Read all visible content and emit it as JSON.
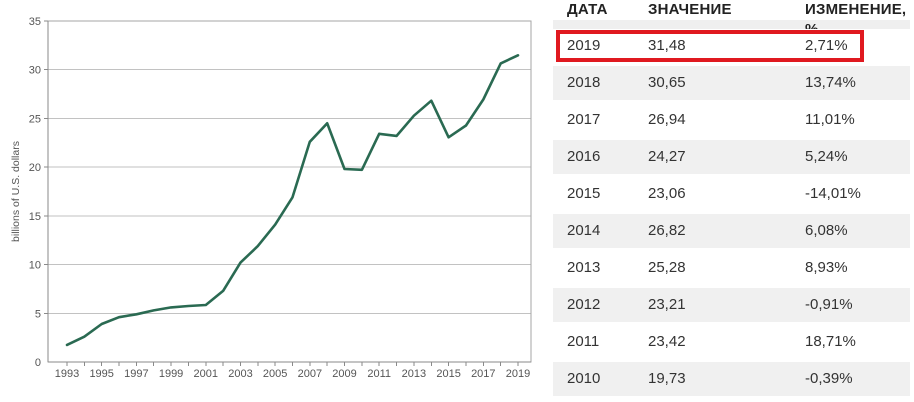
{
  "chart_data": {
    "type": "line",
    "title": "",
    "xlabel": "",
    "ylabel": "billions of U.S. dollars",
    "x": [
      1993,
      1994,
      1995,
      1996,
      1997,
      1998,
      1999,
      2000,
      2001,
      2002,
      2003,
      2004,
      2005,
      2006,
      2007,
      2008,
      2009,
      2010,
      2011,
      2012,
      2013,
      2014,
      2015,
      2016,
      2017,
      2018,
      2019
    ],
    "values": [
      1.75,
      2.6,
      3.9,
      4.6,
      4.9,
      5.3,
      5.6,
      5.75,
      5.85,
      7.3,
      10.2,
      11.9,
      14.1,
      16.9,
      22.6,
      24.5,
      19.81,
      19.73,
      23.42,
      23.21,
      25.28,
      26.82,
      23.06,
      24.27,
      26.94,
      30.65,
      31.48
    ],
    "ylim": [
      0,
      35
    ],
    "ytick_step": 5,
    "yticks": [
      0,
      5,
      10,
      15,
      20,
      25,
      30,
      35
    ],
    "xtick_label_years": [
      1993,
      1995,
      1997,
      1999,
      2001,
      2003,
      2005,
      2007,
      2009,
      2011,
      2013,
      2015,
      2017,
      2019
    ],
    "grid": "horizontal",
    "legend": "none",
    "line_color": "#2a6a52",
    "grid_color": "#c2c2c2",
    "axis_color": "#8a8a8a",
    "tick_text_color": "#555555"
  },
  "table": {
    "columns": [
      "ДАТА",
      "ЗНАЧЕНИЕ",
      "ИЗМЕНЕНИЕ, %"
    ],
    "highlight_color": "#e01920",
    "stripe_color": "#f0f0f0",
    "rows": [
      {
        "date": "2019",
        "value": "31,48",
        "change": "2,71%",
        "highlighted": true
      },
      {
        "date": "2018",
        "value": "30,65",
        "change": "13,74%",
        "highlighted": false
      },
      {
        "date": "2017",
        "value": "26,94",
        "change": "11,01%",
        "highlighted": false
      },
      {
        "date": "2016",
        "value": "24,27",
        "change": "5,24%",
        "highlighted": false
      },
      {
        "date": "2015",
        "value": "23,06",
        "change": "-14,01%",
        "highlighted": false
      },
      {
        "date": "2014",
        "value": "26,82",
        "change": "6,08%",
        "highlighted": false
      },
      {
        "date": "2013",
        "value": "25,28",
        "change": "8,93%",
        "highlighted": false
      },
      {
        "date": "2012",
        "value": "23,21",
        "change": "-0,91%",
        "highlighted": false
      },
      {
        "date": "2011",
        "value": "23,42",
        "change": "18,71%",
        "highlighted": false
      },
      {
        "date": "2010",
        "value": "19,73",
        "change": "-0,39%",
        "highlighted": false
      }
    ]
  }
}
